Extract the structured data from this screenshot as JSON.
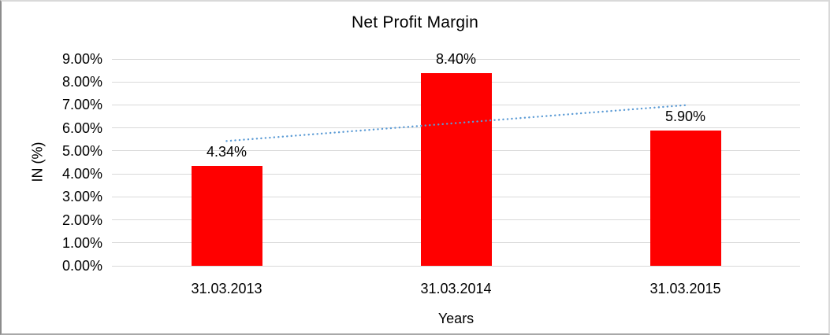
{
  "chart_data": {
    "type": "bar",
    "title": "Net Profit Margin",
    "xlabel": "Years",
    "ylabel": "IN (%)",
    "categories": [
      "31.03.2013",
      "31.03.2014",
      "31.03.2015"
    ],
    "values": [
      4.34,
      8.4,
      5.9
    ],
    "value_labels": [
      "4.34%",
      "8.40%",
      "5.90%"
    ],
    "ylim": [
      0,
      9
    ],
    "ytick_step": 1,
    "ytick_labels": [
      "0.00%",
      "1.00%",
      "2.00%",
      "3.00%",
      "4.00%",
      "5.00%",
      "6.00%",
      "7.00%",
      "8.00%",
      "9.00%"
    ],
    "grid": true,
    "legend": "none",
    "bar_color": "#ff0000",
    "gridline_color": "#d9d9d9",
    "text_color": "#000000",
    "trendline": {
      "type": "linear",
      "style": "dotted",
      "color": "#5b9bd5",
      "start_value": 5.43,
      "end_value": 6.99
    }
  }
}
